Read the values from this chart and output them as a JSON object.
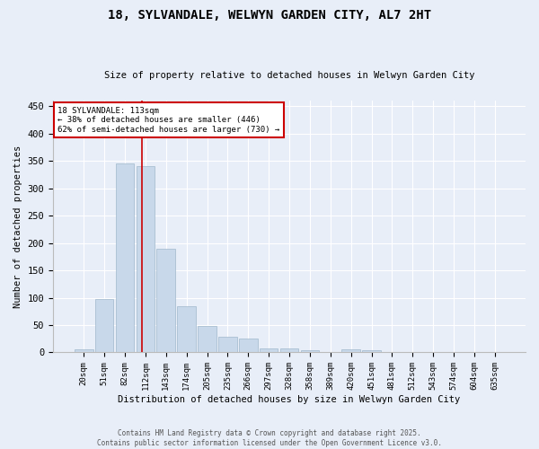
{
  "title": "18, SYLVANDALE, WELWYN GARDEN CITY, AL7 2HT",
  "subtitle": "Size of property relative to detached houses in Welwyn Garden City",
  "xlabel": "Distribution of detached houses by size in Welwyn Garden City",
  "ylabel": "Number of detached properties",
  "bar_color": "#c8d8ea",
  "bar_edgecolor": "#a0b8cc",
  "categories": [
    "20sqm",
    "51sqm",
    "82sqm",
    "112sqm",
    "143sqm",
    "174sqm",
    "205sqm",
    "235sqm",
    "266sqm",
    "297sqm",
    "328sqm",
    "358sqm",
    "389sqm",
    "420sqm",
    "451sqm",
    "481sqm",
    "512sqm",
    "543sqm",
    "574sqm",
    "604sqm",
    "635sqm"
  ],
  "values": [
    5,
    97,
    345,
    340,
    190,
    85,
    48,
    28,
    25,
    8,
    7,
    4,
    1,
    5,
    4,
    0,
    1,
    1,
    0,
    1,
    1
  ],
  "ylim": [
    0,
    460
  ],
  "yticks": [
    0,
    50,
    100,
    150,
    200,
    250,
    300,
    350,
    400,
    450
  ],
  "property_label": "18 SYLVANDALE: 113sqm",
  "annotation_line1": "← 38% of detached houses are smaller (446)",
  "annotation_line2": "62% of semi-detached houses are larger (730) →",
  "vline_x_index": 2.82,
  "annotation_box_color": "#ffffff",
  "annotation_border_color": "#cc0000",
  "background_color": "#e8eef8",
  "grid_color": "#ffffff",
  "footer1": "Contains HM Land Registry data © Crown copyright and database right 2025.",
  "footer2": "Contains public sector information licensed under the Open Government Licence v3.0."
}
